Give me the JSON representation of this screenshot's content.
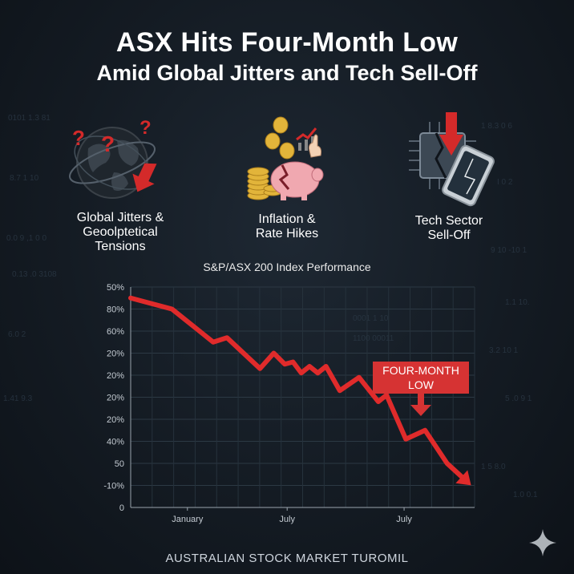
{
  "title": {
    "line1": "ASX Hits Four-Month Low",
    "line2": "Amid Global Jitters and Tech Sell-Off"
  },
  "drivers": [
    {
      "icon": "globe-question-icon",
      "lines": [
        "Global Jitters &",
        "Geoolptetical",
        "Tensions"
      ]
    },
    {
      "icon": "broken-piggy-bank-coins-icon",
      "lines": [
        "Inflation &",
        "Rate Hikes"
      ]
    },
    {
      "icon": "broken-chip-phone-icon",
      "lines": [
        "Tech Sector",
        "Sell-Off"
      ]
    }
  ],
  "footer": "AUSTRALIAN STOCK MARKET TUROMIL",
  "colors": {
    "line": "#e02b2b",
    "background": "#141b23",
    "callout": "#d63333"
  },
  "chart_data": {
    "type": "line",
    "title": "S&P/ASX 200 Index Performance",
    "ytick_labels": [
      "50%",
      "80%",
      "60%",
      "20%",
      "20%",
      "20%",
      "20%",
      "40%",
      "50",
      "-10%",
      "0"
    ],
    "xtick_labels": [
      "January",
      "July",
      "July"
    ],
    "grid": true,
    "annotation": "FOUR-MONTH LOW",
    "series": [
      {
        "x_index": [
          0,
          0.6,
          1.5,
          3.0,
          3.5,
          4.7,
          5.2,
          5.6,
          5.9,
          6.2,
          6.5,
          6.8,
          7.1,
          7.6,
          8.3,
          9.0,
          9.3,
          10.0,
          10.7,
          11.5,
          12.2
        ],
        "values": [
          9.5,
          9.3,
          9.0,
          7.5,
          7.7,
          6.3,
          7.0,
          6.5,
          6.6,
          6.1,
          6.4,
          6.1,
          6.4,
          5.3,
          5.9,
          4.8,
          5.1,
          3.1,
          3.5,
          2.0,
          1.2
        ]
      }
    ]
  }
}
